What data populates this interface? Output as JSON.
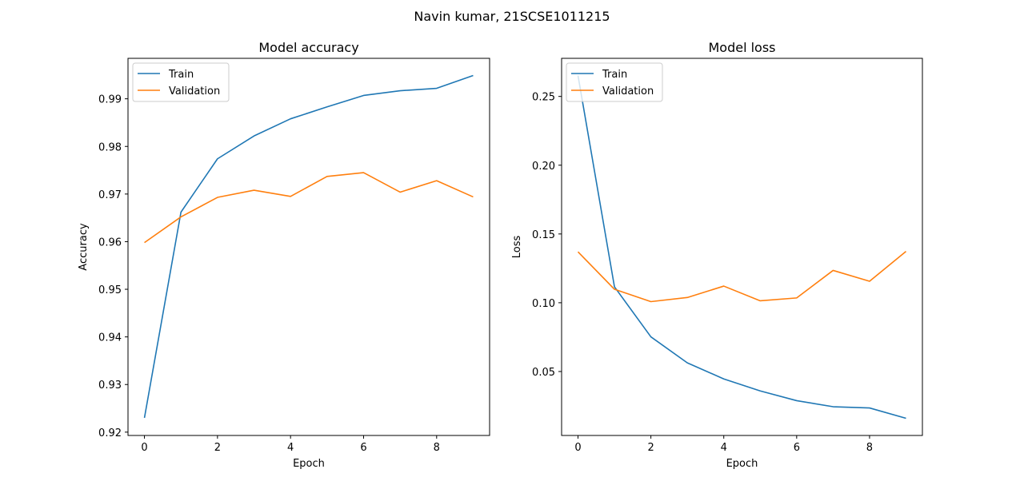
{
  "figure": {
    "suptitle": "Navin kumar, 21SCSE1011215"
  },
  "chart_data": [
    {
      "type": "line",
      "title": "Model accuracy",
      "xlabel": "Epoch",
      "ylabel": "Accuracy",
      "x": [
        0,
        1,
        2,
        3,
        4,
        5,
        6,
        7,
        8,
        9
      ],
      "xlim": [
        -0.45,
        9.45
      ],
      "ylim": [
        0.9193,
        0.9985
      ],
      "xticks": [
        0,
        2,
        4,
        6,
        8
      ],
      "yticks": [
        0.92,
        0.93,
        0.94,
        0.95,
        0.96,
        0.97,
        0.98,
        0.99
      ],
      "ytick_labels": [
        "0.92",
        "0.93",
        "0.94",
        "0.95",
        "0.96",
        "0.97",
        "0.98",
        "0.99"
      ],
      "grid": false,
      "legend": "upper-left",
      "series": [
        {
          "name": "Train",
          "color": "#1f77b4",
          "values": [
            0.923,
            0.9662,
            0.9774,
            0.9822,
            0.9858,
            0.9883,
            0.9907,
            0.9917,
            0.9922,
            0.9949
          ]
        },
        {
          "name": "Validation",
          "color": "#ff7f0e",
          "values": [
            0.9598,
            0.9652,
            0.9693,
            0.9708,
            0.9695,
            0.9737,
            0.9745,
            0.9704,
            0.9728,
            0.9694
          ]
        }
      ]
    },
    {
      "type": "line",
      "title": "Model loss",
      "xlabel": "Epoch",
      "ylabel": "Loss",
      "x": [
        0,
        1,
        2,
        3,
        4,
        5,
        6,
        7,
        8,
        9
      ],
      "xlim": [
        -0.45,
        9.45
      ],
      "ylim": [
        0.0035,
        0.2777
      ],
      "xticks": [
        0,
        2,
        4,
        6,
        8
      ],
      "yticks": [
        0.05,
        0.1,
        0.15,
        0.2,
        0.25
      ],
      "ytick_labels": [
        "0.05",
        "0.10",
        "0.15",
        "0.20",
        "0.25"
      ],
      "grid": false,
      "legend": "upper-left",
      "series": [
        {
          "name": "Train",
          "color": "#1f77b4",
          "values": [
            0.2652,
            0.1116,
            0.0752,
            0.0563,
            0.0446,
            0.0359,
            0.0288,
            0.0244,
            0.0235,
            0.016
          ]
        },
        {
          "name": "Validation",
          "color": "#ff7f0e",
          "values": [
            0.137,
            0.1098,
            0.1008,
            0.1038,
            0.1121,
            0.1014,
            0.1035,
            0.1235,
            0.1156,
            0.1373
          ]
        }
      ]
    }
  ]
}
